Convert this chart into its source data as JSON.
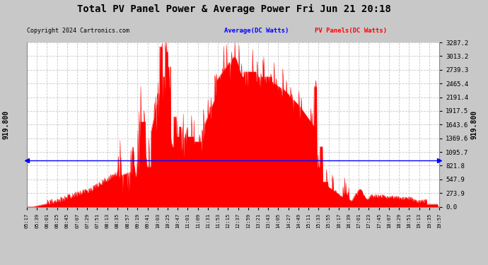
{
  "title": "Total PV Panel Power & Average Power Fri Jun 21 20:18",
  "copyright": "Copyright 2024 Cartronics.com",
  "legend_avg": "Average(DC Watts)",
  "legend_pv": "PV Panels(DC Watts)",
  "avg_value": 919.8,
  "y_max": 3287.2,
  "y_ticks": [
    0.0,
    273.9,
    547.9,
    821.8,
    1095.7,
    1369.6,
    1643.6,
    1917.5,
    2191.4,
    2465.4,
    2739.3,
    3013.2,
    3287.2
  ],
  "left_label": "919.800",
  "fill_color": "#ff0000",
  "avg_line_color": "#0000ff",
  "grid_color": "#c8c8c8",
  "x_labels": [
    "05:17",
    "05:39",
    "06:01",
    "06:25",
    "06:45",
    "07:07",
    "07:29",
    "07:51",
    "08:13",
    "08:35",
    "08:57",
    "09:19",
    "09:41",
    "10:03",
    "10:25",
    "10:47",
    "11:01",
    "11:09",
    "11:31",
    "11:53",
    "12:15",
    "12:37",
    "12:59",
    "13:21",
    "13:43",
    "14:05",
    "14:27",
    "14:49",
    "15:11",
    "15:33",
    "15:55",
    "16:17",
    "16:39",
    "17:01",
    "17:23",
    "17:45",
    "18:07",
    "18:29",
    "18:51",
    "19:13",
    "19:35",
    "19:57"
  ]
}
